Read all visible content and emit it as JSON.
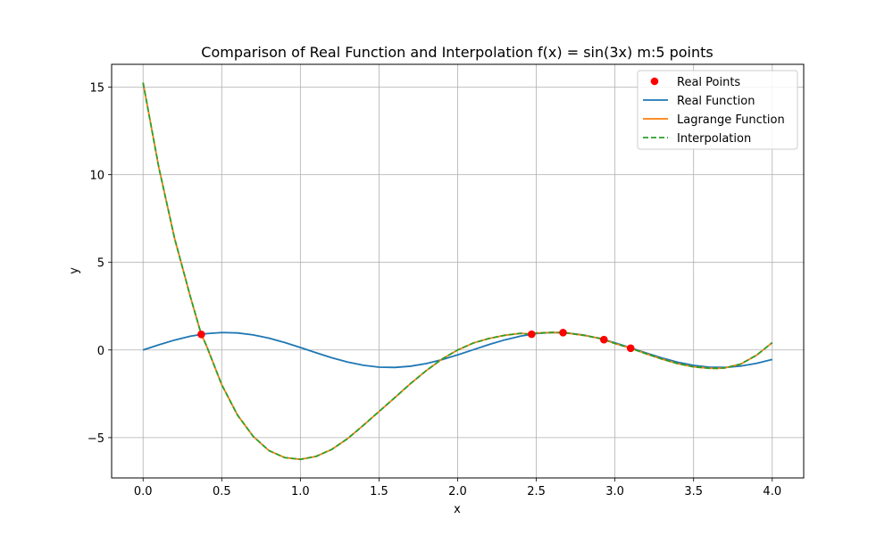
{
  "chart_data": {
    "type": "line",
    "title": "Comparison of Real Function and Interpolation f(x) = sin(3x) m:5 points",
    "xlabel": "x",
    "ylabel": "y",
    "xlim": [
      -0.2,
      4.2
    ],
    "ylim": [
      -7.3,
      16.3
    ],
    "x_ticks": [
      0.0,
      0.5,
      1.0,
      1.5,
      2.0,
      2.5,
      3.0,
      3.5,
      4.0
    ],
    "x_tick_labels": [
      "0.0",
      "0.5",
      "1.0",
      "1.5",
      "2.0",
      "2.5",
      "3.0",
      "3.5",
      "4.0"
    ],
    "y_ticks": [
      -5,
      0,
      5,
      10,
      15
    ],
    "y_tick_labels": [
      "−5",
      "0",
      "5",
      "10",
      "15"
    ],
    "grid": true,
    "legend_position": "top-right",
    "legend": [
      {
        "label": "Real Points",
        "marker": "circle",
        "color": "#ff0000"
      },
      {
        "label": "Real Function",
        "style": "solid",
        "color": "#1f77b4"
      },
      {
        "label": "Lagrange Function",
        "style": "solid",
        "color": "#ff7f0e"
      },
      {
        "label": "Interpolation",
        "style": "dashed",
        "color": "#2ca02c"
      }
    ],
    "real_points": {
      "x": [
        0.37,
        2.47,
        2.67,
        2.93,
        3.1
      ],
      "y": [
        0.89,
        0.9,
        0.99,
        0.59,
        0.1
      ],
      "color": "#ff0000"
    },
    "series": [
      {
        "label": "Real Function",
        "color": "#1f77b4",
        "style": "solid",
        "x": [
          0.0,
          0.1,
          0.2,
          0.3,
          0.4,
          0.5,
          0.6,
          0.7,
          0.8,
          0.9,
          1.0,
          1.1,
          1.2,
          1.3,
          1.4,
          1.5,
          1.6,
          1.7,
          1.8,
          1.9,
          2.0,
          2.1,
          2.2,
          2.3,
          2.4,
          2.5,
          2.6,
          2.7,
          2.8,
          2.9,
          3.0,
          3.1,
          3.2,
          3.3,
          3.4,
          3.5,
          3.6,
          3.7,
          3.8,
          3.9,
          4.0
        ],
        "y": [
          0.0,
          0.296,
          0.565,
          0.783,
          0.932,
          0.997,
          0.974,
          0.863,
          0.675,
          0.427,
          0.141,
          -0.158,
          -0.443,
          -0.688,
          -0.872,
          -0.978,
          -0.996,
          -0.925,
          -0.773,
          -0.551,
          -0.279,
          0.017,
          0.312,
          0.578,
          0.793,
          0.938,
          0.999,
          0.97,
          0.855,
          0.663,
          0.412,
          0.124,
          -0.174,
          -0.457,
          -0.699,
          -0.879,
          -0.981,
          -0.996,
          -0.917,
          -0.763,
          -0.537
        ]
      },
      {
        "label": "Lagrange Function",
        "color": "#ff7f0e",
        "style": "solid",
        "x": [
          0.0,
          0.1,
          0.2,
          0.3,
          0.37,
          0.4,
          0.5,
          0.6,
          0.7,
          0.8,
          0.9,
          1.0,
          1.1,
          1.2,
          1.3,
          1.4,
          1.5,
          1.6,
          1.7,
          1.8,
          1.9,
          2.0,
          2.1,
          2.2,
          2.3,
          2.4,
          2.47,
          2.5,
          2.6,
          2.67,
          2.7,
          2.8,
          2.9,
          2.93,
          3.0,
          3.1,
          3.2,
          3.3,
          3.4,
          3.5,
          3.6,
          3.65,
          3.7,
          3.8,
          3.9,
          4.0
        ],
        "y": [
          15.25,
          10.42,
          6.38,
          3.06,
          0.89,
          0.31,
          -1.98,
          -3.71,
          -4.93,
          -5.74,
          -6.14,
          -6.24,
          -6.07,
          -5.67,
          -5.06,
          -4.3,
          -3.51,
          -2.72,
          -1.92,
          -1.18,
          -0.52,
          0.0,
          0.4,
          0.66,
          0.84,
          0.95,
          0.9,
          0.97,
          1.0,
          0.99,
          0.96,
          0.84,
          0.67,
          0.59,
          0.37,
          0.1,
          -0.22,
          -0.52,
          -0.78,
          -0.96,
          -1.04,
          -1.05,
          -1.02,
          -0.8,
          -0.3,
          0.42
        ]
      },
      {
        "label": "Interpolation",
        "color": "#2ca02c",
        "style": "dashed",
        "x": [
          0.0,
          0.1,
          0.2,
          0.3,
          0.37,
          0.4,
          0.5,
          0.6,
          0.7,
          0.8,
          0.9,
          1.0,
          1.1,
          1.2,
          1.3,
          1.4,
          1.5,
          1.6,
          1.7,
          1.8,
          1.9,
          2.0,
          2.1,
          2.2,
          2.3,
          2.4,
          2.47,
          2.5,
          2.6,
          2.67,
          2.7,
          2.8,
          2.9,
          2.93,
          3.0,
          3.1,
          3.2,
          3.3,
          3.4,
          3.5,
          3.6,
          3.65,
          3.7,
          3.8,
          3.9,
          4.0
        ],
        "y": [
          15.25,
          10.42,
          6.38,
          3.06,
          0.89,
          0.31,
          -1.98,
          -3.71,
          -4.93,
          -5.74,
          -6.14,
          -6.24,
          -6.07,
          -5.67,
          -5.06,
          -4.3,
          -3.51,
          -2.72,
          -1.92,
          -1.18,
          -0.52,
          0.0,
          0.4,
          0.66,
          0.84,
          0.95,
          0.9,
          0.97,
          1.0,
          0.99,
          0.96,
          0.84,
          0.67,
          0.59,
          0.37,
          0.1,
          -0.22,
          -0.52,
          -0.78,
          -0.96,
          -1.04,
          -1.05,
          -1.02,
          -0.8,
          -0.3,
          0.42
        ]
      }
    ]
  }
}
